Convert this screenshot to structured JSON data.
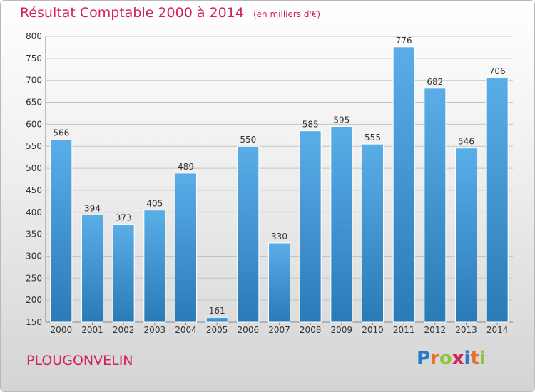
{
  "title": "Résultat Comptable 2000 à 2014",
  "subtitle": "(en milliers d'€)",
  "place": "PLOUGONVELIN",
  "logo": {
    "letters": [
      "P",
      "r",
      "o",
      "x",
      "i",
      "t",
      "i"
    ],
    "colors": [
      "#2a7ac8",
      "#e8702a",
      "#8cc63f",
      "#d1225a",
      "#2a7ac8",
      "#e8702a",
      "#8cc63f"
    ]
  },
  "colors": {
    "bar_top": "#5aaee8",
    "bar_bottom": "#2a7ab8",
    "accent": "#d1225a"
  },
  "chart_data": {
    "type": "bar",
    "categories": [
      "2000",
      "2001",
      "2002",
      "2003",
      "2004",
      "2005",
      "2006",
      "2007",
      "2008",
      "2009",
      "2010",
      "2011",
      "2012",
      "2013",
      "2014"
    ],
    "values": [
      566,
      394,
      373,
      405,
      489,
      161,
      550,
      330,
      585,
      595,
      555,
      776,
      682,
      546,
      706
    ],
    "ylim": [
      150,
      800
    ],
    "yticks": [
      150,
      200,
      250,
      300,
      350,
      400,
      450,
      500,
      550,
      600,
      650,
      700,
      750,
      800
    ],
    "grid": true,
    "title": "Résultat Comptable 2000 à 2014",
    "xlabel": "",
    "ylabel": ""
  }
}
